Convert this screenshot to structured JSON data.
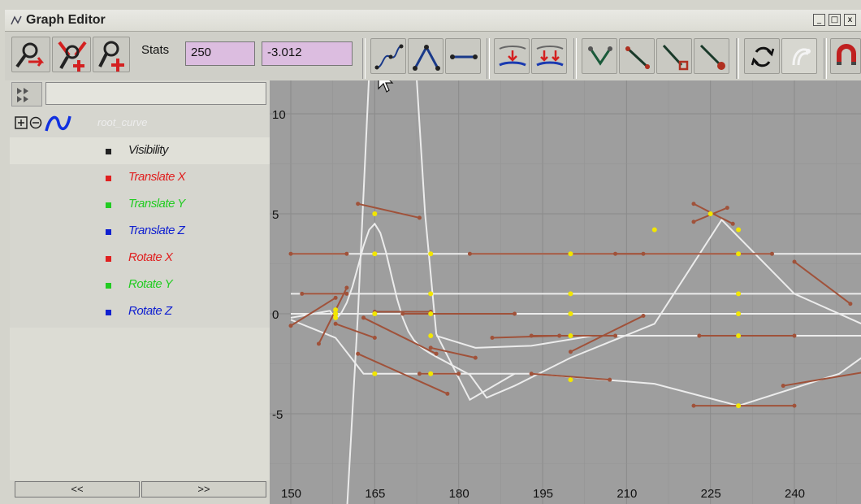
{
  "window": {
    "title": "Graph Editor",
    "title_icon": "graph-editor-icon",
    "buttons": [
      {
        "name": "minimize-button",
        "glyph": "_"
      },
      {
        "name": "maximize-button",
        "glyph": "□"
      },
      {
        "name": "close-button",
        "glyph": "x"
      }
    ]
  },
  "toolbar": {
    "stats_label": "Stats",
    "stats_frame": "250",
    "stats_value": "-3.012",
    "icons": [
      "move-key-tool-icon",
      "insert-key-tool-icon",
      "add-key-tool-icon",
      "spline-tangents-icon",
      "clamped-tangents-icon",
      "linear-tangents-icon",
      "break-tangents-icon",
      "unify-tangents-icon",
      "free-tangent-weight-icon",
      "lock-tangent-weight-icon",
      "weighted-tangent-icon",
      "non-weighted-tangent-icon",
      "buffer-curve-swap-icon",
      "buffer-curve-snapshot-icon",
      "snap-icon"
    ]
  },
  "outliner": {
    "filter_value": "",
    "curve_name": "root_curve",
    "attributes": [
      {
        "label": "Visibility",
        "color": "#222222",
        "swatch": "#222222",
        "selected": true
      },
      {
        "label": "Translate X",
        "color": "#e02020",
        "swatch": "#e02020"
      },
      {
        "label": "Translate Y",
        "color": "#22cc22",
        "swatch": "#22cc22"
      },
      {
        "label": "Translate Z",
        "color": "#1020d0",
        "swatch": "#1020d0"
      },
      {
        "label": "Rotate X",
        "color": "#e02020",
        "swatch": "#e02020"
      },
      {
        "label": "Rotate Y",
        "color": "#22cc22",
        "swatch": "#22cc22"
      },
      {
        "label": "Rotate Z",
        "color": "#1020d0",
        "swatch": "#1020d0"
      }
    ],
    "scroll_left": "<<",
    "scroll_right": ">>"
  },
  "graph": {
    "background": "#9e9e9e",
    "x_ticks": [
      "150",
      "165",
      "180",
      "195",
      "210",
      "225",
      "240"
    ],
    "y_ticks": [
      "10",
      "5",
      "0",
      "-5"
    ],
    "curve_color": "#ececec",
    "tangent_color": "#a0523a",
    "key_color": "#f2e600"
  }
}
